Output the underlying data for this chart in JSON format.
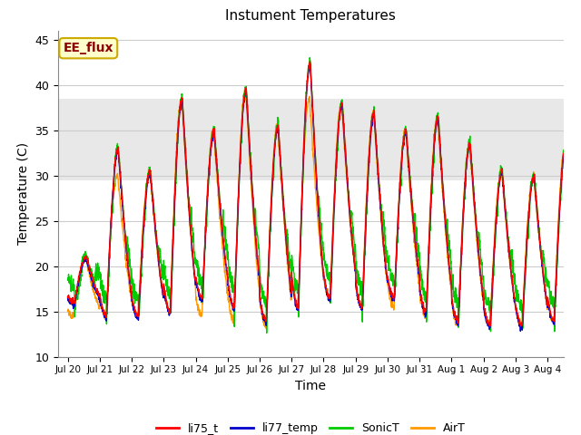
{
  "title": "Instument Temperatures",
  "xlabel": "Time",
  "ylabel": "Temperature (C)",
  "ylim": [
    10,
    46
  ],
  "background_color": "#ffffff",
  "plot_bg_color": "#ffffff",
  "annotation_text": "EE_flux",
  "annotation_color": "#8b0000",
  "annotation_bg": "#ffffcc",
  "annotation_border": "#ccaa00",
  "series_colors": {
    "li75_t": "#ff0000",
    "li77_temp": "#0000cc",
    "SonicT": "#00cc00",
    "AirT": "#ff9900"
  },
  "x_tick_labels": [
    "Jul 20",
    "Jul 21",
    "Jul 22",
    "Jul 23",
    "Jul 24",
    "Jul 25",
    "Jul 26",
    "Jul 27",
    "Jul 28",
    "Jul 29",
    "Jul 30",
    "Jul 31",
    "Aug 1",
    "Aug 2",
    "Aug 3",
    "Aug 4"
  ],
  "shaded_band": [
    29.5,
    38.5
  ],
  "shaded_color": "#e8e8e8",
  "grid_color": "#cccccc",
  "yticks": [
    10,
    15,
    20,
    25,
    30,
    35,
    40,
    45
  ],
  "day_maxs_li75": [
    21.0,
    33.0,
    30.5,
    38.5,
    35.0,
    39.5,
    35.5,
    42.5,
    38.0,
    37.0,
    35.0,
    36.5,
    33.5,
    30.5,
    30.0,
    33.5
  ],
  "day_mins_li75": [
    16.0,
    14.5,
    14.5,
    15.0,
    16.5,
    15.5,
    14.0,
    15.5,
    16.5,
    15.5,
    16.5,
    15.0,
    14.0,
    13.5,
    13.5,
    14.0
  ],
  "day_maxs_air": [
    21.0,
    30.0,
    30.5,
    38.5,
    35.0,
    39.5,
    35.5,
    38.5,
    38.0,
    37.0,
    35.0,
    36.5,
    33.5,
    30.5,
    30.0,
    33.5
  ],
  "day_mins_air": [
    14.5,
    14.5,
    14.5,
    15.0,
    14.5,
    14.0,
    13.5,
    16.0,
    16.5,
    15.5,
    15.5,
    14.5,
    13.5,
    13.5,
    13.5,
    14.0
  ],
  "pts_per_day": 144,
  "n_days": 15.5
}
